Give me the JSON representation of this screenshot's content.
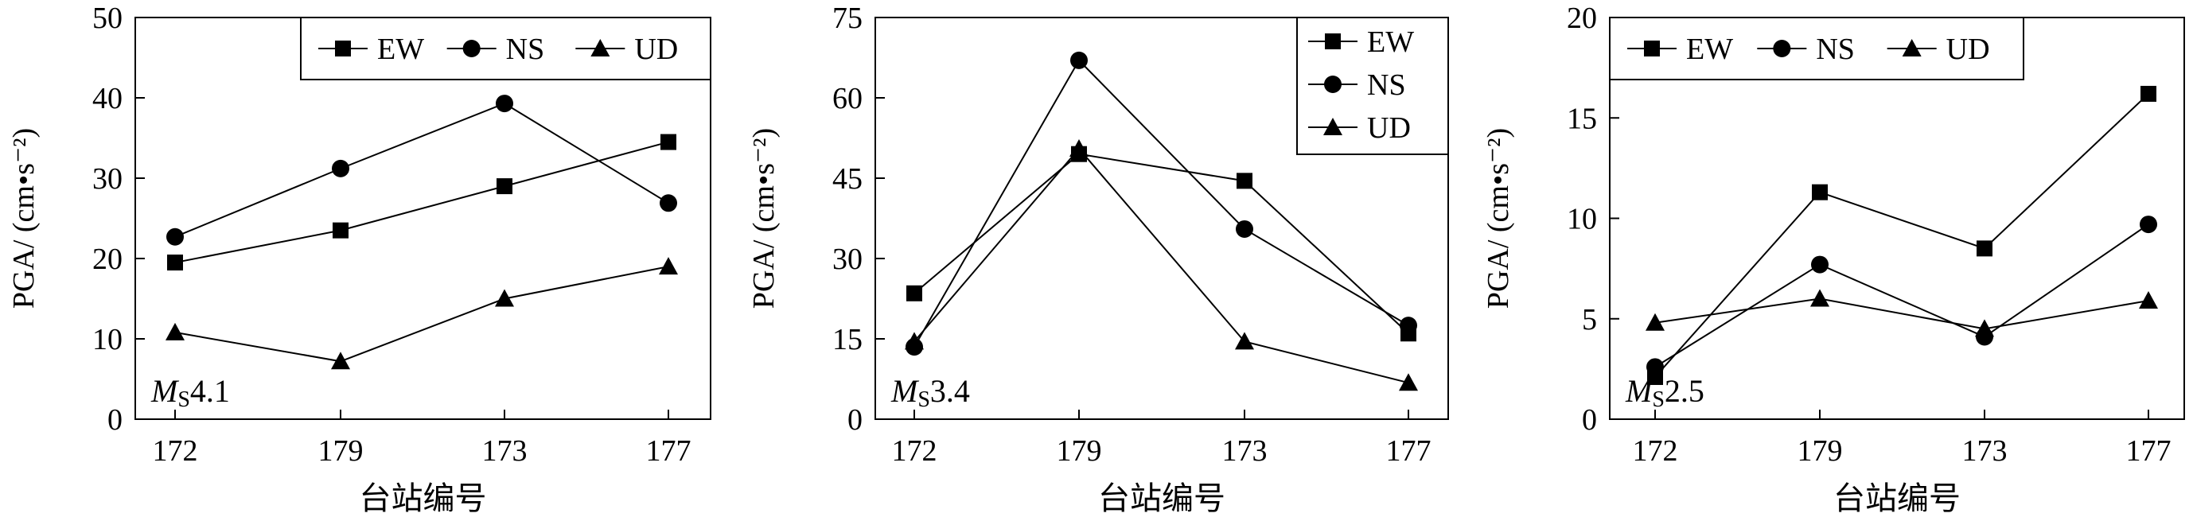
{
  "chart_data": [
    {
      "type": "line",
      "categories": [
        "172",
        "179",
        "173",
        "177"
      ],
      "xlabel": "台站编号",
      "ylabel": "PGA/ (cm•s⁻²)",
      "ylim": [
        0,
        50
      ],
      "yticks": [
        0,
        10,
        20,
        30,
        40,
        50
      ],
      "annotation": "Ms4.1",
      "legend_position": "top-right, single row",
      "series": [
        {
          "name": "EW",
          "marker": "square",
          "values": [
            19.5,
            23.5,
            29.0,
            34.5
          ]
        },
        {
          "name": "NS",
          "marker": "circle",
          "values": [
            22.7,
            31.2,
            39.3,
            26.9
          ]
        },
        {
          "name": "UD",
          "marker": "triangle",
          "values": [
            10.8,
            7.2,
            15.0,
            19.0
          ]
        }
      ]
    },
    {
      "type": "line",
      "categories": [
        "172",
        "179",
        "173",
        "177"
      ],
      "xlabel": "台站编号",
      "ylabel": "PGA/ (cm•s⁻²)",
      "ylim": [
        0,
        75
      ],
      "yticks": [
        0,
        15,
        30,
        45,
        60,
        75
      ],
      "annotation": "Ms3.4",
      "legend_position": "top-right, stacked",
      "series": [
        {
          "name": "EW",
          "marker": "square",
          "values": [
            23.5,
            49.5,
            44.5,
            16.0
          ]
        },
        {
          "name": "NS",
          "marker": "circle",
          "values": [
            13.5,
            67.0,
            35.5,
            17.5
          ]
        },
        {
          "name": "UD",
          "marker": "triangle",
          "values": [
            14.5,
            50.5,
            14.5,
            6.8
          ]
        }
      ]
    },
    {
      "type": "line",
      "categories": [
        "172",
        "179",
        "173",
        "177"
      ],
      "xlabel": "台站编号",
      "ylabel": "PGA/ (cm•s⁻²)",
      "ylim": [
        0,
        20
      ],
      "yticks": [
        0,
        5,
        10,
        15,
        20
      ],
      "annotation": "Ms2.5",
      "legend_position": "top, single row",
      "series": [
        {
          "name": "EW",
          "marker": "square",
          "values": [
            2.1,
            11.3,
            8.5,
            16.2
          ]
        },
        {
          "name": "NS",
          "marker": "circle",
          "values": [
            2.6,
            7.7,
            4.1,
            9.7
          ]
        },
        {
          "name": "UD",
          "marker": "triangle",
          "values": [
            4.8,
            6.0,
            4.5,
            5.9
          ]
        }
      ]
    }
  ]
}
